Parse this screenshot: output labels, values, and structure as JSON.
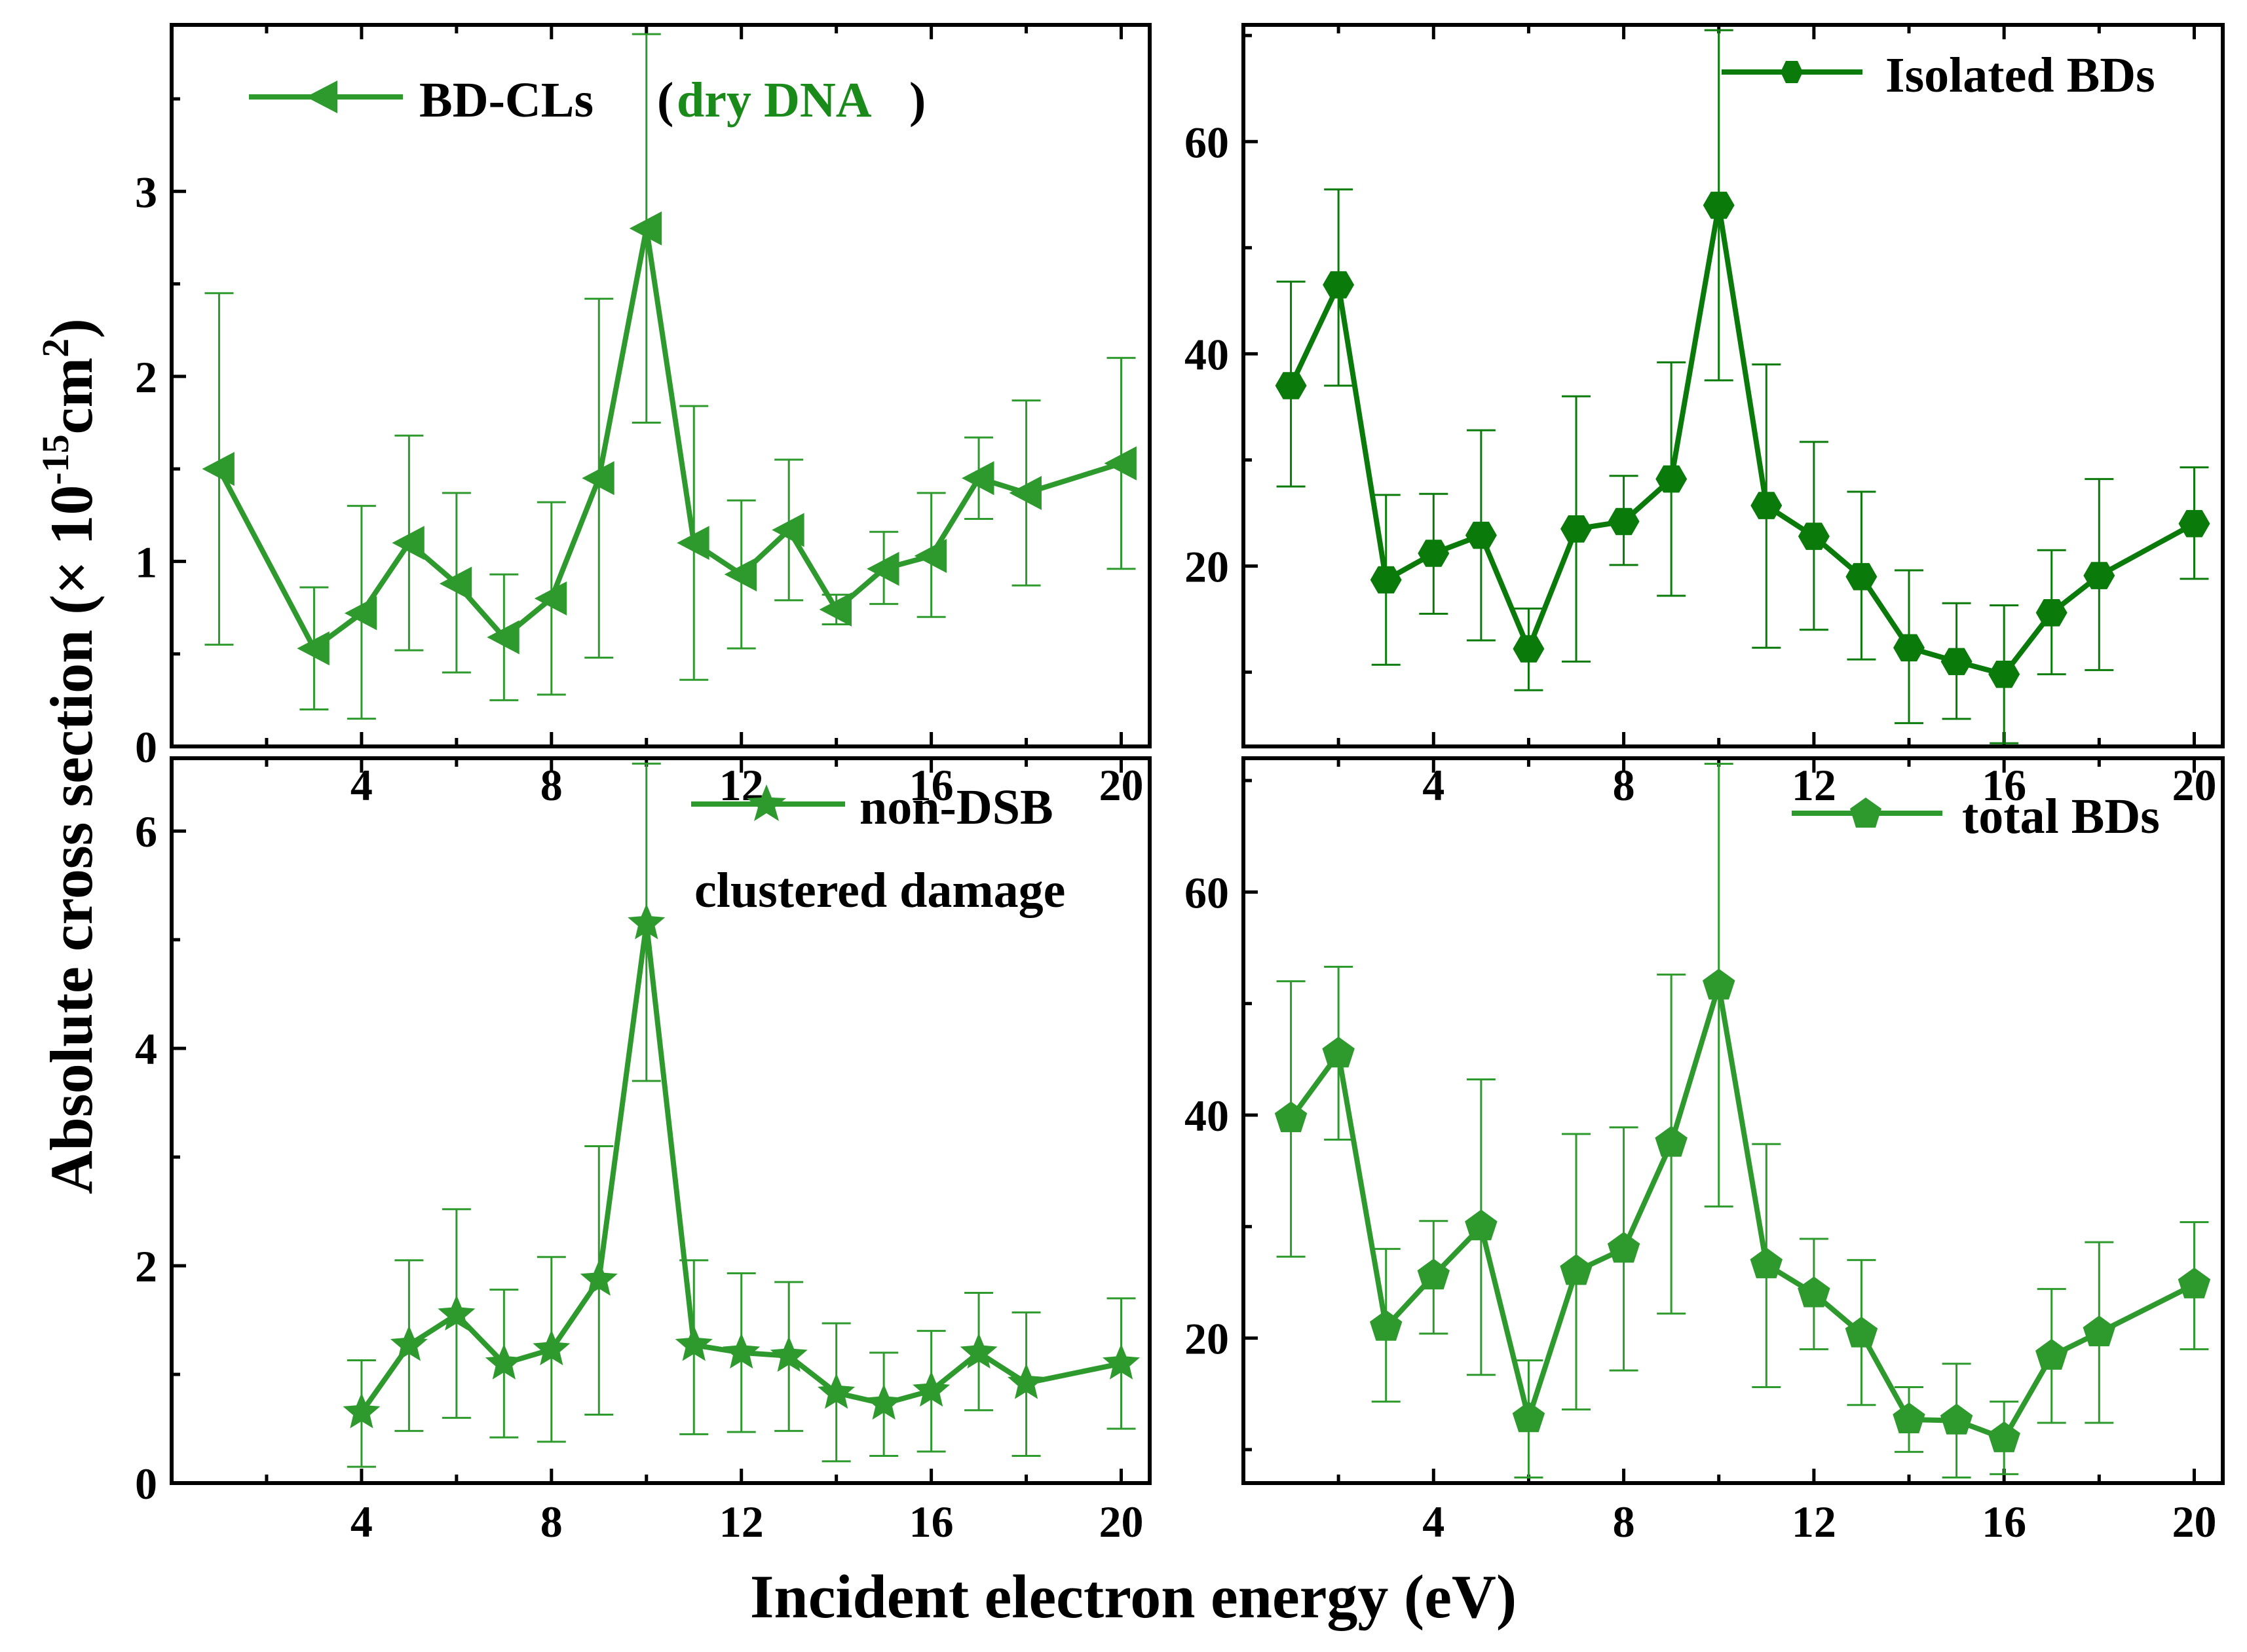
{
  "figure": {
    "ylabel_main": "Absolute cross section (× 10",
    "ylabel_exp": "-15",
    "ylabel_unit": "cm",
    "ylabel_unit_exp": "2",
    "ylabel_close": ")",
    "xlabel": "Incident electron energy (eV)"
  },
  "legends": {
    "p1_series": "BD-CLs",
    "p1_open": "(",
    "p1_highlight": "dry DNA",
    "p1_close": ")",
    "p1_highlight_color": "#1a8a1a",
    "p2_series": "Isolated BDs",
    "p3_series": "non-DSB",
    "p3_line2": "clustered damage",
    "p4_series": "total BDs"
  },
  "chart_data": [
    {
      "type": "line",
      "title": "BD-CLs (dry DNA)",
      "series_name": "BD-CLs",
      "marker": "triangle-left",
      "color": "#2e9a2e",
      "x": [
        1,
        3,
        4,
        5,
        6,
        7,
        8,
        9,
        10,
        11,
        12,
        13,
        14,
        15,
        16,
        17,
        18,
        20
      ],
      "y": [
        1.5,
        0.53,
        0.72,
        1.1,
        0.88,
        0.59,
        0.8,
        1.45,
        2.8,
        1.1,
        0.93,
        1.17,
        0.74,
        0.96,
        1.03,
        1.45,
        1.37,
        1.53
      ],
      "err_low": [
        0.55,
        0.2,
        0.15,
        0.52,
        0.4,
        0.25,
        0.28,
        0.48,
        1.75,
        0.36,
        0.53,
        0.79,
        0.66,
        0.77,
        0.7,
        1.23,
        0.87,
        0.96
      ],
      "err_high": [
        2.45,
        0.86,
        1.3,
        1.68,
        1.37,
        0.93,
        1.32,
        2.42,
        3.85,
        1.84,
        1.33,
        1.55,
        0.82,
        1.16,
        1.37,
        1.67,
        1.87,
        2.1
      ],
      "xlim": [
        0,
        20.6
      ],
      "ylim": [
        0,
        3.9
      ],
      "xticks": [
        "4",
        "8",
        "12",
        "16",
        "20"
      ],
      "yticks": [
        "0",
        "1",
        "2",
        "3"
      ]
    },
    {
      "type": "line",
      "title": "Isolated BDs",
      "series_name": "Isolated BDs",
      "marker": "hexagon",
      "color": "#0a7a0a",
      "x": [
        1,
        2,
        3,
        4,
        5,
        6,
        7,
        8,
        9,
        10,
        11,
        12,
        13,
        14,
        15,
        16,
        17,
        18,
        20
      ],
      "y": [
        37,
        46.5,
        18.7,
        21.2,
        22.9,
        12.2,
        23.5,
        24.2,
        28.2,
        54,
        25.7,
        22.8,
        19,
        12.3,
        11,
        9.8,
        15.6,
        19.1,
        24
      ],
      "err_low": [
        27.5,
        37,
        10.7,
        15.5,
        13,
        8.3,
        11,
        20.1,
        17.2,
        37.5,
        12.3,
        14,
        11.2,
        5.2,
        5.6,
        3.3,
        9.8,
        10.2,
        18.8
      ],
      "err_high": [
        46.8,
        55.5,
        26.7,
        26.8,
        32.8,
        16,
        36,
        28.5,
        39.2,
        70.5,
        39,
        31.7,
        27,
        19.6,
        16.5,
        16.3,
        21.5,
        28.2,
        29.3
      ],
      "xlim": [
        0,
        20.6
      ],
      "ylim": [
        3,
        71
      ],
      "xticks": [
        "4",
        "8",
        "12",
        "16",
        "20"
      ],
      "yticks": [
        "20",
        "40",
        "60"
      ]
    },
    {
      "type": "line",
      "title": "non-DSB clustered damage",
      "series_name": "non-DSB",
      "marker": "star",
      "color": "#2e9a2e",
      "x": [
        4,
        5,
        6,
        7,
        8,
        9,
        10,
        11,
        12,
        13,
        14,
        15,
        16,
        17,
        18,
        20
      ],
      "y": [
        0.65,
        1.27,
        1.55,
        1.1,
        1.23,
        1.87,
        5.15,
        1.27,
        1.2,
        1.17,
        0.83,
        0.73,
        0.85,
        1.2,
        0.92,
        1.1
      ],
      "err_low": [
        0.15,
        0.48,
        0.6,
        0.42,
        0.38,
        0.63,
        3.7,
        0.45,
        0.47,
        0.48,
        0.2,
        0.25,
        0.29,
        0.67,
        0.25,
        0.5
      ],
      "err_high": [
        1.13,
        2.05,
        2.52,
        1.78,
        2.08,
        3.1,
        6.62,
        2.05,
        1.93,
        1.85,
        1.47,
        1.2,
        1.4,
        1.75,
        1.57,
        1.7
      ],
      "xlim": [
        0,
        20.6
      ],
      "ylim": [
        0,
        6.67
      ],
      "xticks": [
        "4",
        "8",
        "12",
        "16",
        "20"
      ],
      "yticks": [
        "0",
        "2",
        "4",
        "6"
      ]
    },
    {
      "type": "line",
      "title": "total BDs",
      "series_name": "total BDs",
      "marker": "pentagon",
      "color": "#2e9a2e",
      "x": [
        1,
        2,
        3,
        4,
        5,
        6,
        7,
        8,
        9,
        10,
        11,
        12,
        13,
        14,
        15,
        16,
        17,
        18,
        20
      ],
      "y": [
        39.7,
        45.5,
        21,
        25.6,
        30,
        12.8,
        26,
        28,
        37.5,
        51.6,
        26.6,
        24,
        20.4,
        12.7,
        12.6,
        11,
        18.4,
        20.5,
        24.8
      ],
      "err_low": [
        27.3,
        37.8,
        14.3,
        20.4,
        16.7,
        7.5,
        13.6,
        17.1,
        22.2,
        31.8,
        15.6,
        19,
        14,
        9.8,
        7.5,
        7.8,
        12.4,
        12.4,
        19
      ],
      "err_high": [
        52,
        53.3,
        28,
        30.5,
        43.2,
        18,
        38.3,
        38.9,
        52.6,
        71.5,
        37.4,
        28.9,
        27,
        15.6,
        17.7,
        14.3,
        24.4,
        28.6,
        30.4
      ],
      "xlim": [
        0,
        20.6
      ],
      "ylim": [
        7,
        72
      ],
      "xticks": [
        "4",
        "8",
        "12",
        "16",
        "20"
      ],
      "yticks": [
        "20",
        "40",
        "60"
      ]
    }
  ]
}
